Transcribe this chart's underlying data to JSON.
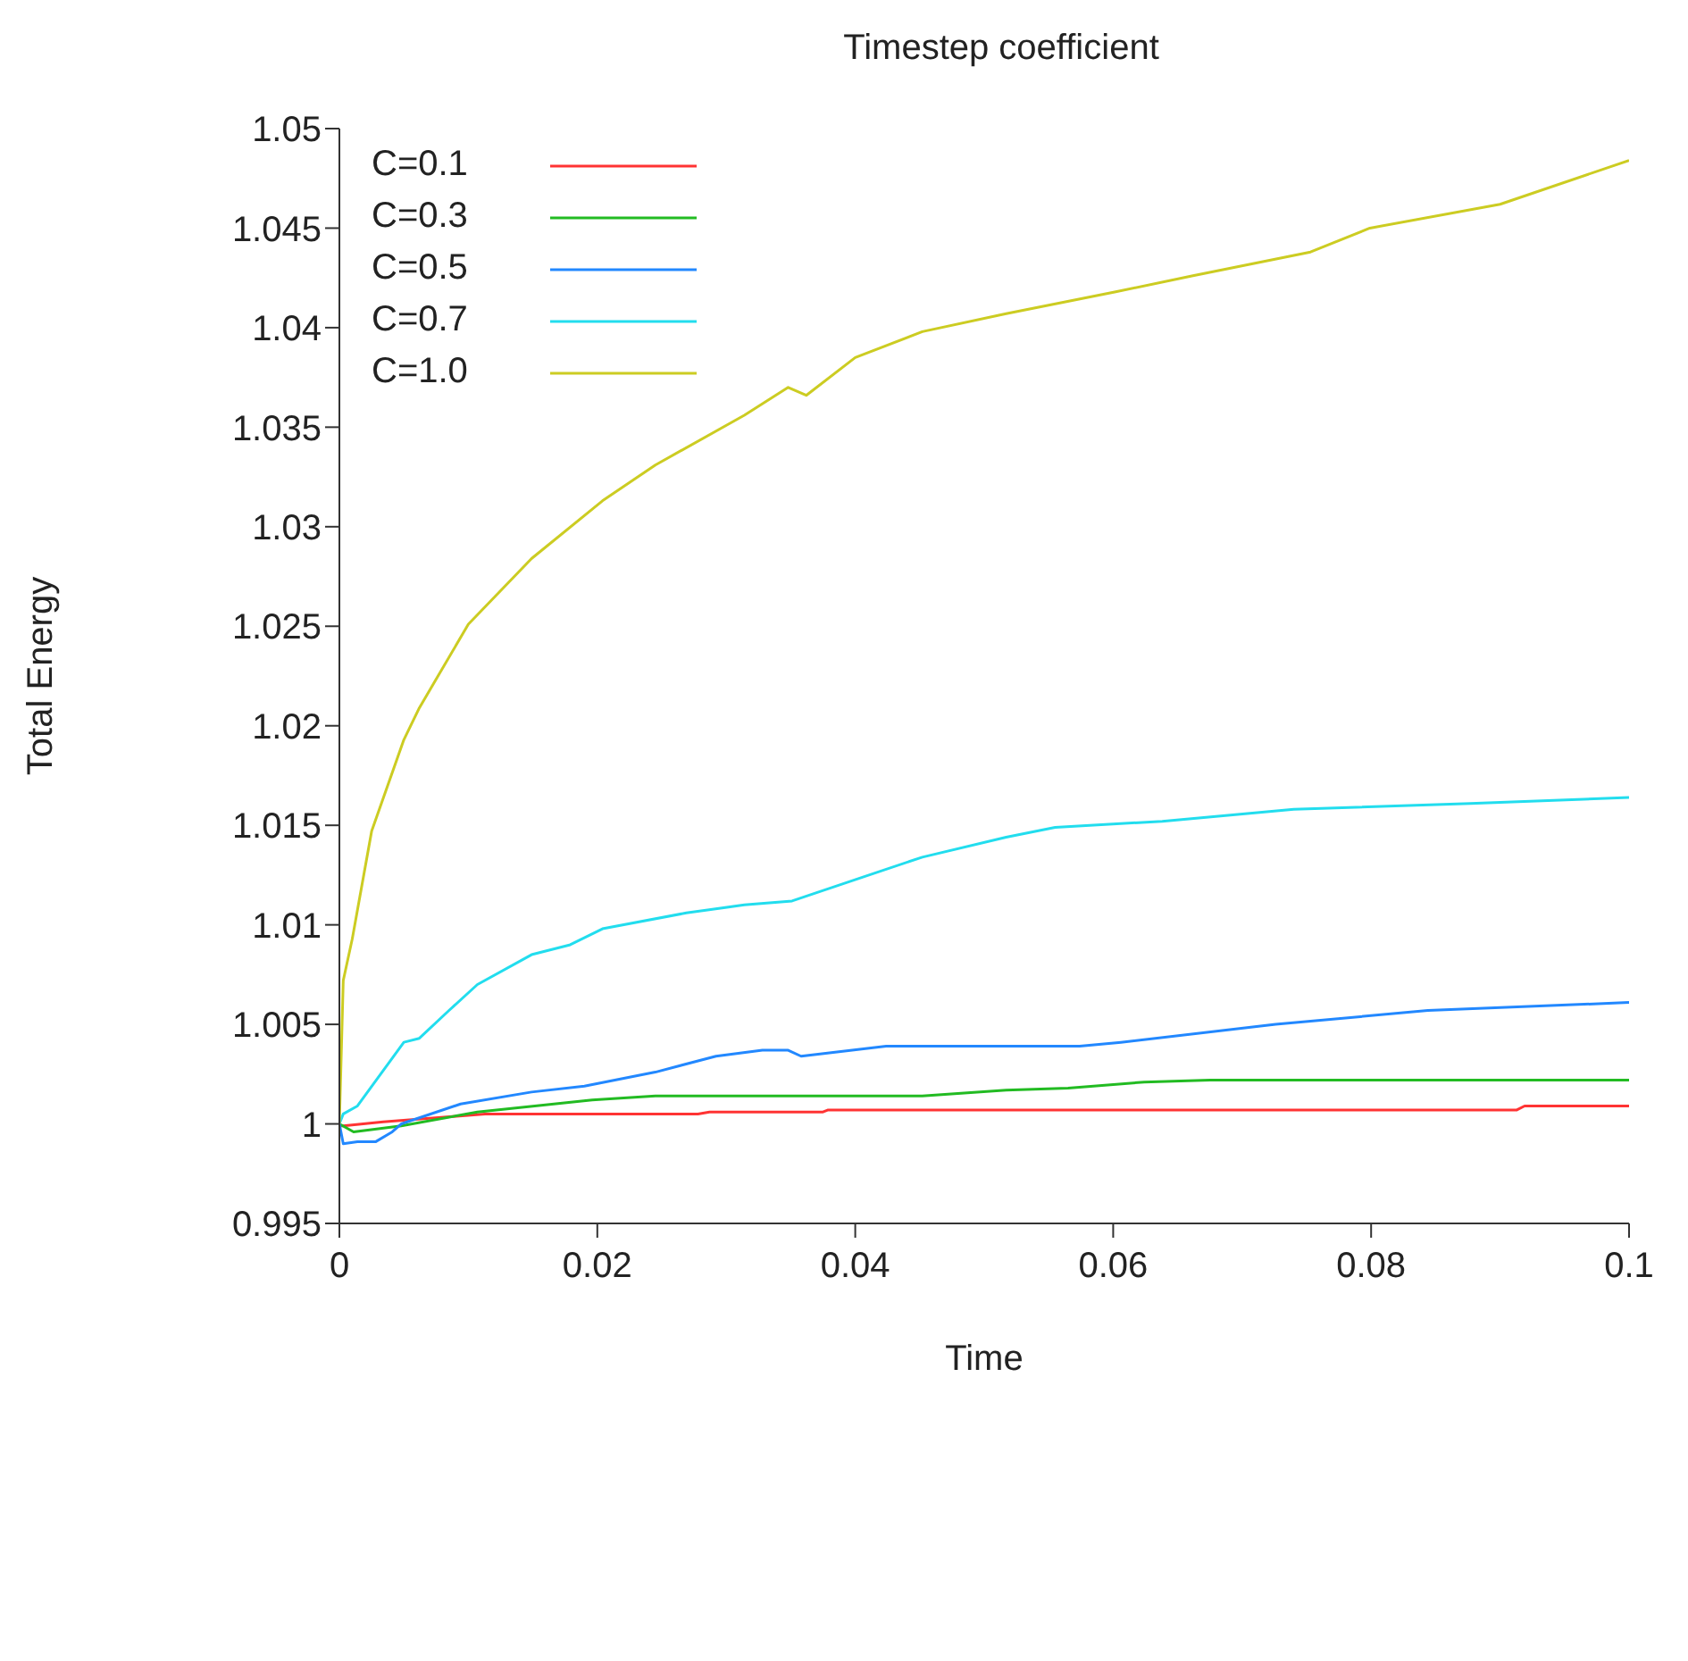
{
  "chart_data": {
    "type": "line",
    "title": "Timestep coefficient",
    "xlabel": "Time",
    "ylabel": "Total Energy",
    "xlim": [
      0,
      0.1
    ],
    "xticks": [
      0,
      0.02,
      0.04,
      0.06,
      0.08,
      0.1
    ],
    "ylim": [
      0.995,
      1.05
    ],
    "yticks": [
      0.995,
      1,
      1.005,
      1.01,
      1.015,
      1.02,
      1.025,
      1.03,
      1.035,
      1.04,
      1.045,
      1.05
    ],
    "legend": "top left",
    "marker": "none",
    "line_style": "solid",
    "series": [
      {
        "name": "C=0.1",
        "color": "#ff3333",
        "x": [
          0,
          0.0003,
          0.0034,
          0.0113,
          0.0278,
          0.0287,
          0.0375,
          0.0379,
          0.0913,
          0.0919,
          0.1
        ],
        "values": [
          0.9999,
          0.9999,
          1.0001,
          1.0005,
          1.0005,
          1.0006,
          1.0006,
          1.0007,
          1.0007,
          1.0009,
          1.0009
        ]
      },
      {
        "name": "C=0.3",
        "color": "#22bb22",
        "x": [
          0,
          0.0011,
          0.0048,
          0.0107,
          0.0196,
          0.0245,
          0.0278,
          0.0452,
          0.0517,
          0.0565,
          0.0624,
          0.0675,
          0.1
        ],
        "values": [
          1.0,
          0.9996,
          0.9999,
          1.0006,
          1.0012,
          1.0014,
          1.0014,
          1.0014,
          1.0017,
          1.0018,
          1.0021,
          1.0022,
          1.0022
        ]
      },
      {
        "name": "C=0.5",
        "color": "#2288ff",
        "x": [
          0,
          0.0003,
          0.0014,
          0.0028,
          0.0041,
          0.0048,
          0.0094,
          0.0149,
          0.019,
          0.0245,
          0.0292,
          0.0328,
          0.0348,
          0.0358,
          0.0424,
          0.0517,
          0.0574,
          0.0606,
          0.0726,
          0.0844,
          0.1
        ],
        "values": [
          1.0,
          0.999,
          0.9991,
          0.9991,
          0.9996,
          1.0,
          1.001,
          1.0016,
          1.0019,
          1.0026,
          1.0034,
          1.0037,
          1.0037,
          1.0034,
          1.0039,
          1.0039,
          1.0039,
          1.0041,
          1.005,
          1.0057,
          1.0061
        ]
      },
      {
        "name": "C=0.7",
        "color": "#22ddee",
        "x": [
          0,
          0.0003,
          0.0014,
          0.005,
          0.0062,
          0.0085,
          0.0107,
          0.0149,
          0.0179,
          0.0204,
          0.0269,
          0.0314,
          0.0351,
          0.0406,
          0.0452,
          0.0517,
          0.0555,
          0.0638,
          0.074,
          0.0877,
          0.1
        ],
        "values": [
          1.0,
          1.0005,
          1.0009,
          1.0041,
          1.0043,
          1.0057,
          1.007,
          1.0085,
          1.009,
          1.0098,
          1.0106,
          1.011,
          1.0112,
          1.0124,
          1.0134,
          1.0144,
          1.0149,
          1.0152,
          1.0158,
          1.0161,
          1.0164
        ]
      },
      {
        "name": "C=1.0",
        "color": "#cccc22",
        "x": [
          0,
          0.0003,
          0.001,
          0.0025,
          0.005,
          0.0062,
          0.01,
          0.0149,
          0.0204,
          0.0245,
          0.0314,
          0.0348,
          0.0362,
          0.04,
          0.0452,
          0.0517,
          0.0602,
          0.0661,
          0.0753,
          0.0799,
          0.09,
          0.1
        ],
        "values": [
          1.0,
          1.0072,
          1.0093,
          1.0147,
          1.0193,
          1.0209,
          1.0251,
          1.0284,
          1.0313,
          1.0331,
          1.0356,
          1.037,
          1.0366,
          1.0385,
          1.0398,
          1.0407,
          1.0418,
          1.0426,
          1.0438,
          1.045,
          1.0462,
          1.0484
        ]
      }
    ]
  }
}
